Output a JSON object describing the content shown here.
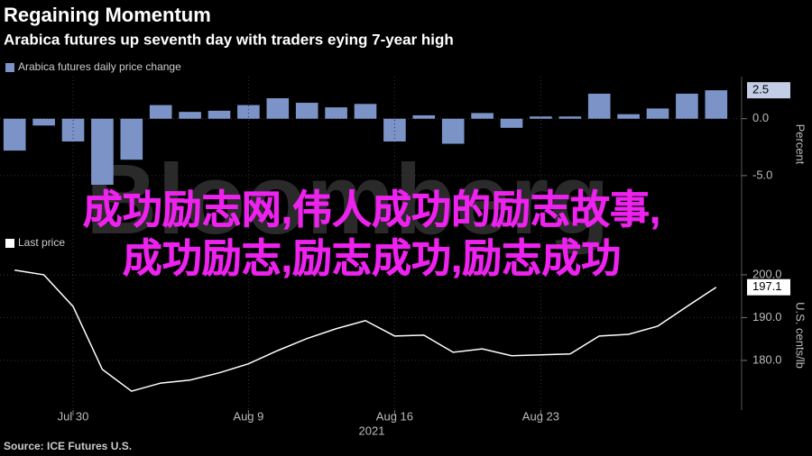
{
  "title": "Regaining Momentum",
  "subtitle": "Arabica futures up seventh day with traders eying 7-year high",
  "source": "Source: ICE Futures U.S.",
  "watermark": "Bloomberg",
  "overlay": [
    "成功励志网,伟人成功的励志故事,",
    "成功励志,励志成功,励志成功"
  ],
  "chart_data": [
    {
      "type": "bar",
      "y_label": "Percent",
      "series": [
        {
          "name": "Arabica futures daily price change",
          "color": "#7b93c7",
          "values": [
            -2.8,
            -0.6,
            -2.0,
            -5.8,
            -3.6,
            1.2,
            0.6,
            0.7,
            1.2,
            1.8,
            1.4,
            1.0,
            1.3,
            -2.0,
            0.3,
            -2.2,
            0.5,
            -0.8,
            0.2,
            0.2,
            2.2,
            0.4,
            0.9,
            2.2,
            2.5
          ]
        }
      ],
      "ylim": [
        -5.8,
        3.7
      ],
      "yticks": [
        {
          "value": 0,
          "label": "0.0"
        },
        {
          "value": -5,
          "label": "-5.0"
        }
      ],
      "grid": true
    },
    {
      "type": "line",
      "y_label": "U.S. cents/lb",
      "x_label": "2021",
      "categories": [
        null,
        null,
        "Jul 30",
        null,
        null,
        null,
        null,
        null,
        "Aug 9",
        null,
        null,
        null,
        null,
        "Aug 16",
        null,
        null,
        null,
        null,
        "Aug 23",
        null,
        null,
        null,
        null,
        null,
        null
      ],
      "series": [
        {
          "name": "Last price",
          "color": "#ffffff",
          "values": [
            201.1,
            200.0,
            192.6,
            177.9,
            172.8,
            174.7,
            175.4,
            177.1,
            179.2,
            182.3,
            185.1,
            187.4,
            189.3,
            185.7,
            185.9,
            181.9,
            182.7,
            181.1,
            181.3,
            181.5,
            185.7,
            186.1,
            188.0,
            192.6,
            197.1
          ]
        }
      ],
      "ylim": [
        168.4,
        204.2
      ],
      "yticks": [
        {
          "value": 200,
          "label": "200.0"
        },
        {
          "value": 190,
          "label": "190.0"
        },
        {
          "value": 180,
          "label": "180.0"
        }
      ],
      "grid": true
    }
  ]
}
